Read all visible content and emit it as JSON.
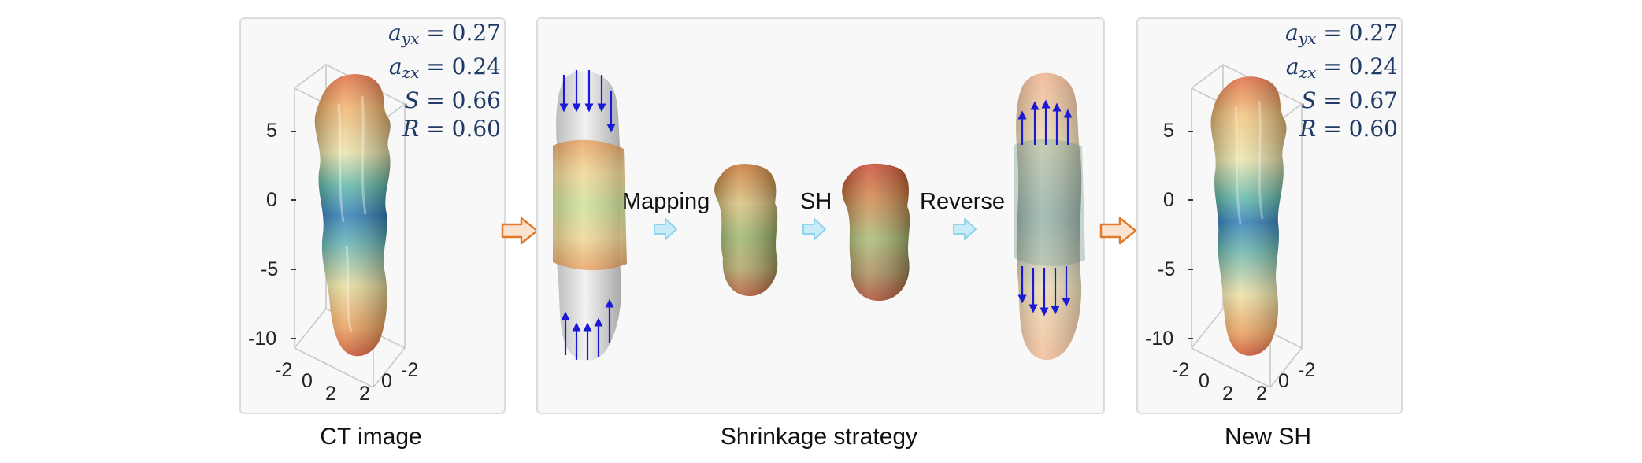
{
  "panels": {
    "ct": {
      "caption": "CT image",
      "stats": {
        "ayx": "0.27",
        "azx": "0.24",
        "S": "0.66",
        "R": "0.60"
      },
      "z_ticks": [
        "5",
        "0",
        "-5",
        "-10"
      ],
      "x_ticks": [
        "-2",
        "0",
        "2"
      ],
      "y_ticks": [
        "2",
        "0",
        "-2"
      ]
    },
    "shrinkage": {
      "caption": "Shrinkage strategy",
      "steps": [
        "Mapping",
        "SH",
        "Reverse"
      ]
    },
    "newsh": {
      "caption": "New SH",
      "stats": {
        "ayx": "0.27",
        "azx": "0.24",
        "S": "0.67",
        "R": "0.60"
      },
      "z_ticks": [
        "5",
        "0",
        "-5",
        "-10"
      ],
      "x_ticks": [
        "-2",
        "0",
        "2"
      ],
      "y_ticks": [
        "2",
        "0",
        "-2"
      ]
    }
  },
  "colors": {
    "big_arrow": "#e07a2e",
    "small_arrow": "#8fd3ef",
    "force_arrow": "#1a1ad6",
    "stats_text": "#1f3a66"
  }
}
